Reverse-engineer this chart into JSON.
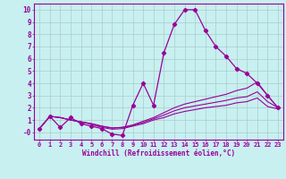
{
  "xlabel": "Windchill (Refroidissement éolien,°C)",
  "bg_color": "#c8f0f0",
  "line_color": "#990099",
  "grid_color": "#aacccc",
  "xlim": [
    -0.5,
    23.5
  ],
  "ylim": [
    -0.6,
    10.5
  ],
  "xticks": [
    0,
    1,
    2,
    3,
    4,
    5,
    6,
    7,
    8,
    9,
    10,
    11,
    12,
    13,
    14,
    15,
    16,
    17,
    18,
    19,
    20,
    21,
    22,
    23
  ],
  "yticks": [
    0,
    1,
    2,
    3,
    4,
    5,
    6,
    7,
    8,
    9,
    10
  ],
  "ytick_labels": [
    "-0",
    "1",
    "2",
    "3",
    "4",
    "5",
    "6",
    "7",
    "8",
    "9",
    "10"
  ],
  "series": [
    {
      "x": [
        0,
        1,
        2,
        3,
        4,
        5,
        6,
        7,
        8,
        9,
        10,
        11,
        12,
        13,
        14,
        15,
        16,
        17,
        18,
        19,
        20,
        21,
        22,
        23
      ],
      "y": [
        0.3,
        1.3,
        0.4,
        1.2,
        0.7,
        0.5,
        0.3,
        -0.15,
        -0.25,
        2.2,
        4.0,
        2.2,
        6.5,
        8.8,
        10.0,
        10.0,
        8.3,
        7.0,
        6.2,
        5.2,
        4.8,
        4.0,
        3.0,
        2.0
      ],
      "markers": true
    },
    {
      "x": [
        0,
        1,
        2,
        3,
        4,
        5,
        6,
        7,
        8,
        9,
        10,
        11,
        12,
        13,
        14,
        15,
        16,
        17,
        18,
        19,
        20,
        21,
        22,
        23
      ],
      "y": [
        0.3,
        1.3,
        1.2,
        1.0,
        0.85,
        0.7,
        0.5,
        0.35,
        0.4,
        0.6,
        0.9,
        1.2,
        1.6,
        2.0,
        2.3,
        2.5,
        2.7,
        2.9,
        3.1,
        3.4,
        3.6,
        4.1,
        3.0,
        2.0
      ],
      "markers": false
    },
    {
      "x": [
        0,
        1,
        2,
        3,
        4,
        5,
        6,
        7,
        8,
        9,
        10,
        11,
        12,
        13,
        14,
        15,
        16,
        17,
        18,
        19,
        20,
        21,
        22,
        23
      ],
      "y": [
        0.3,
        1.3,
        1.2,
        1.0,
        0.85,
        0.7,
        0.5,
        0.35,
        0.4,
        0.55,
        0.8,
        1.1,
        1.4,
        1.75,
        2.0,
        2.15,
        2.3,
        2.45,
        2.6,
        2.8,
        2.9,
        3.3,
        2.5,
        2.0
      ],
      "markers": false
    },
    {
      "x": [
        0,
        1,
        2,
        3,
        4,
        5,
        6,
        7,
        8,
        9,
        10,
        11,
        12,
        13,
        14,
        15,
        16,
        17,
        18,
        19,
        20,
        21,
        22,
        23
      ],
      "y": [
        0.3,
        1.3,
        1.2,
        1.0,
        0.85,
        0.65,
        0.4,
        0.25,
        0.3,
        0.5,
        0.7,
        1.0,
        1.2,
        1.5,
        1.7,
        1.85,
        2.0,
        2.1,
        2.2,
        2.4,
        2.5,
        2.8,
        2.1,
        1.9
      ],
      "markers": false
    }
  ]
}
